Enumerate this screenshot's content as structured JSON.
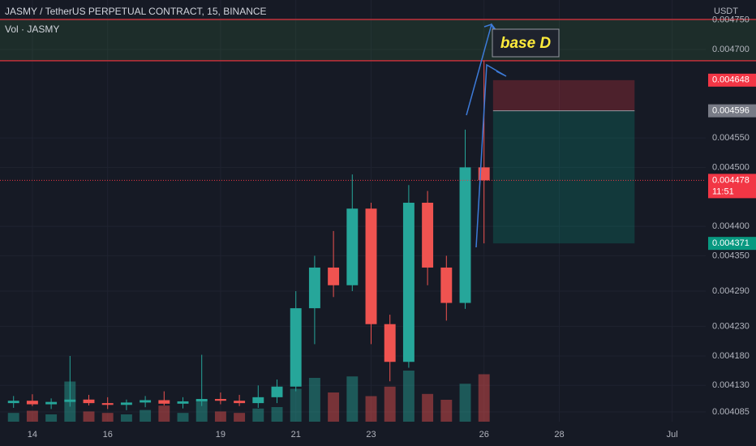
{
  "chart_data": {
    "type": "candlestick",
    "title": "JASMY / TetherUS PERPETUAL CONTRACT, 15, BINANCE",
    "volume_label": "Vol · JASMY",
    "currency": "USDT",
    "annotation": "base D",
    "x": [
      13.5,
      14.0,
      14.5,
      15.0,
      15.5,
      16.0,
      16.5,
      17.0,
      17.5,
      18.0,
      18.5,
      19.0,
      19.5,
      20.0,
      20.5,
      21.0,
      21.5,
      22.0,
      22.5,
      23.0,
      23.5,
      24.0,
      24.5,
      25.0,
      25.5,
      26.0
    ],
    "open": [
      0.0041,
      0.004104,
      0.004098,
      0.004102,
      0.004106,
      0.0041,
      0.004097,
      0.004101,
      0.004105,
      0.004099,
      0.004103,
      0.004107,
      0.004104,
      0.0041,
      0.00411,
      0.004128,
      0.004261,
      0.00433,
      0.0043,
      0.00443,
      0.004234,
      0.00417,
      0.00444,
      0.00433,
      0.00427,
      0.0045
    ],
    "high": [
      0.004112,
      0.004115,
      0.004108,
      0.00418,
      0.004114,
      0.00411,
      0.004106,
      0.004112,
      0.00412,
      0.00411,
      0.004182,
      0.004118,
      0.004114,
      0.00413,
      0.00414,
      0.00429,
      0.00435,
      0.004392,
      0.004488,
      0.00444,
      0.00425,
      0.00447,
      0.00446,
      0.00435,
      0.004564,
      0.004681
    ],
    "low": [
      0.004092,
      0.004095,
      0.00409,
      0.004094,
      0.004096,
      0.00409,
      0.004088,
      0.004093,
      0.004096,
      0.004091,
      0.004095,
      0.004098,
      0.004095,
      0.004092,
      0.0041,
      0.00412,
      0.0042,
      0.00428,
      0.00429,
      0.0042,
      0.004137,
      0.00416,
      0.0043,
      0.00424,
      0.00426,
      0.004371
    ],
    "close": [
      0.004104,
      0.004098,
      0.004102,
      0.004106,
      0.0041,
      0.004097,
      0.004101,
      0.004105,
      0.004099,
      0.004103,
      0.004107,
      0.004104,
      0.0041,
      0.00411,
      0.004128,
      0.004261,
      0.00433,
      0.0043,
      0.00443,
      0.004234,
      0.00417,
      0.00444,
      0.00433,
      0.00427,
      0.0045,
      0.004478
    ],
    "volume": [
      12,
      15,
      10,
      55,
      14,
      12,
      10,
      16,
      22,
      12,
      30,
      14,
      12,
      18,
      20,
      45,
      60,
      40,
      62,
      35,
      48,
      70,
      38,
      30,
      52,
      65
    ],
    "vlim": [
      0,
      100
    ],
    "up_color": "#26a69a",
    "down_color": "#ef5350",
    "xlim": [
      13.14,
      31.89
    ],
    "xticks": [
      14,
      16,
      19,
      21,
      23,
      26,
      28,
      {
        "value": 31,
        "label": "Jul"
      }
    ],
    "ylim": [
      0.0040685,
      0.004784
    ],
    "yticks": [
      {
        "value": 0.00475,
        "label": "0.004750"
      },
      {
        "value": 0.0047,
        "label": "0.004700"
      },
      {
        "value": 0.00455,
        "label": "0.004550"
      },
      {
        "value": 0.0045,
        "label": "0.004500"
      },
      {
        "value": 0.0044,
        "label": "0.004400"
      },
      {
        "value": 0.00435,
        "label": "0.004350"
      },
      {
        "value": 0.00429,
        "label": "0.004290"
      },
      {
        "value": 0.00423,
        "label": "0.004230"
      },
      {
        "value": 0.00418,
        "label": "0.004180"
      },
      {
        "value": 0.00413,
        "label": "0.004130"
      },
      {
        "value": 0.004085,
        "label": "0.004085"
      }
    ],
    "grid": true,
    "zone": [
      0.004681,
      0.004751
    ],
    "position": {
      "stop": 0.004648,
      "entry": 0.004596,
      "target": 0.004371,
      "start": 26.24,
      "end": 30.0
    },
    "price_labels": [
      {
        "value": 0.004648,
        "label": "0.004648",
        "color": "#f23645"
      },
      {
        "value": 0.004596,
        "label": "0.004596",
        "color": "#787b86"
      },
      {
        "value": 0.004478,
        "label": "0.004478",
        "color": "#f23645"
      },
      {
        "value": 0.004371,
        "label": "0.004371",
        "color": "#089981"
      }
    ],
    "countdown": "11:51"
  }
}
